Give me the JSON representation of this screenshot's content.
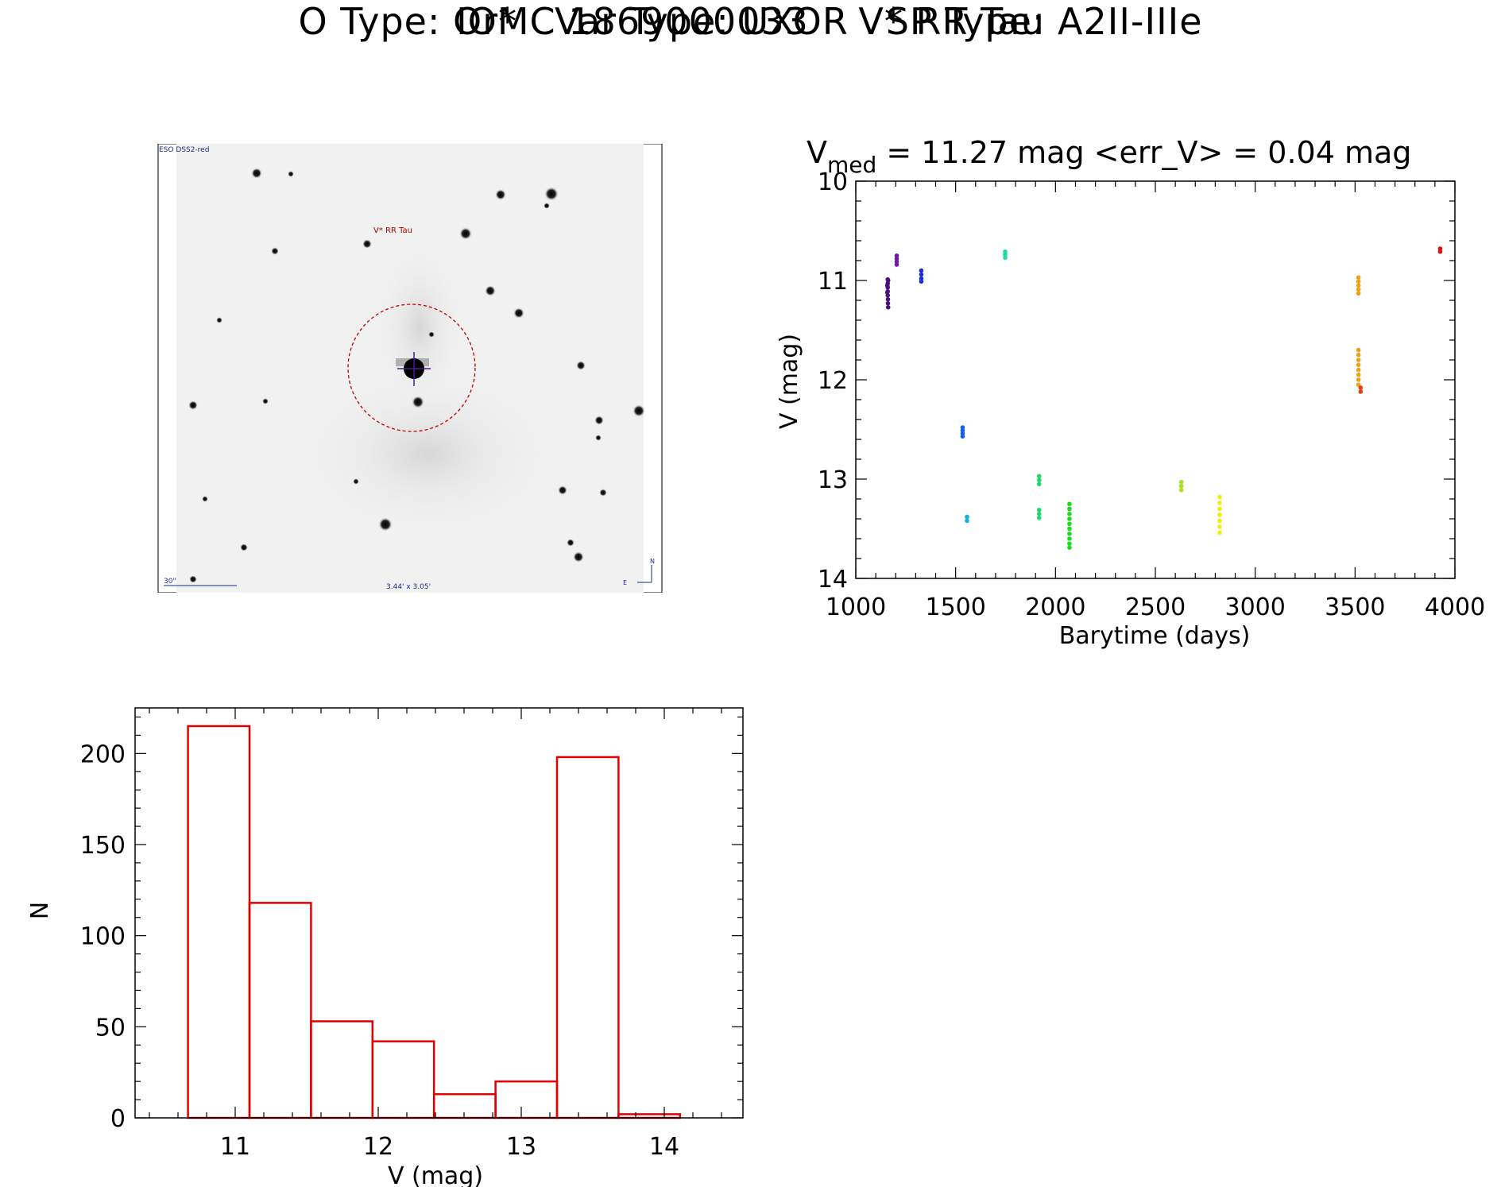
{
  "header": {
    "line1": "IOMC 1869000033    V* RR Tau",
    "line2": "O Type: Or*   Var Type: UXOR   SP Type: A2II-IIIe"
  },
  "sky_image": {
    "survey_label": "ESO DSS2-red",
    "target_label": "V* RR Tau",
    "scale_label": "30\"",
    "size_label": "3.44' x 3.05'",
    "orientation_n": "N",
    "orientation_e": "E",
    "target_circle_color": "#c00000"
  },
  "chart_data": [
    {
      "type": "scatter",
      "title_prefix": "V",
      "title_subscript": "med",
      "title_rest": " = 11.27 mag <err_V> = 0.04 mag",
      "xlabel": "Barytime (days)",
      "ylabel": "V (mag)",
      "xlim": [
        1000,
        4000
      ],
      "ylim": [
        14,
        10
      ],
      "y_inverted": true,
      "xticks": [
        1000,
        1500,
        2000,
        2500,
        3000,
        3500,
        4000
      ],
      "yticks": [
        10,
        11,
        12,
        13,
        14
      ],
      "series": [
        {
          "color": "#4b1080",
          "points": [
            [
              1160,
              10.99
            ],
            [
              1160,
              11.03
            ],
            [
              1160,
              11.07
            ],
            [
              1160,
              11.11
            ],
            [
              1160,
              11.15
            ],
            [
              1161,
              11.19
            ],
            [
              1161,
              11.23
            ],
            [
              1162,
              11.27
            ],
            [
              1158,
              11.05
            ],
            [
              1158,
              11.12
            ],
            [
              1162,
              11.0
            ]
          ]
        },
        {
          "color": "#6a1ca8",
          "points": [
            [
              1205,
              10.75
            ],
            [
              1205,
              10.78
            ],
            [
              1205,
              10.81
            ],
            [
              1205,
              10.84
            ]
          ]
        },
        {
          "color": "#1a2fd8",
          "points": [
            [
              1328,
              10.9
            ],
            [
              1328,
              10.94
            ],
            [
              1328,
              10.98
            ],
            [
              1328,
              11.01
            ]
          ]
        },
        {
          "color": "#1560e0",
          "points": [
            [
              1535,
              12.48
            ],
            [
              1535,
              12.51
            ],
            [
              1535,
              12.54
            ],
            [
              1535,
              12.57
            ]
          ]
        },
        {
          "color": "#12b0e0",
          "points": [
            [
              1557,
              13.38
            ],
            [
              1557,
              13.42
            ]
          ]
        },
        {
          "color": "#1fd8a8",
          "points": [
            [
              1748,
              10.71
            ],
            [
              1748,
              10.74
            ],
            [
              1748,
              10.77
            ]
          ]
        },
        {
          "color": "#22d86a",
          "points": [
            [
              1918,
              12.97
            ],
            [
              1918,
              13.01
            ],
            [
              1918,
              13.05
            ],
            [
              1918,
              13.31
            ],
            [
              1918,
              13.35
            ],
            [
              1918,
              13.39
            ]
          ]
        },
        {
          "color": "#1fd81f",
          "points": [
            [
              2070,
              13.25
            ],
            [
              2070,
              13.3
            ],
            [
              2070,
              13.35
            ],
            [
              2070,
              13.4
            ],
            [
              2070,
              13.45
            ],
            [
              2070,
              13.5
            ],
            [
              2070,
              13.55
            ],
            [
              2070,
              13.6
            ],
            [
              2070,
              13.65
            ],
            [
              2070,
              13.69
            ]
          ]
        },
        {
          "color": "#a8e01a",
          "points": [
            [
              2630,
              13.03
            ],
            [
              2630,
              13.07
            ],
            [
              2630,
              13.11
            ]
          ]
        },
        {
          "color": "#f0f000",
          "points": [
            [
              2822,
              13.18
            ],
            [
              2822,
              13.24
            ],
            [
              2822,
              13.3
            ],
            [
              2822,
              13.36
            ],
            [
              2822,
              13.42
            ],
            [
              2822,
              13.48
            ],
            [
              2822,
              13.54
            ]
          ]
        },
        {
          "color": "#f0a010",
          "points": [
            [
              3517,
              10.97
            ],
            [
              3517,
              11.01
            ],
            [
              3517,
              11.05
            ],
            [
              3517,
              11.09
            ],
            [
              3517,
              11.13
            ],
            [
              3517,
              11.7
            ],
            [
              3517,
              11.75
            ],
            [
              3517,
              11.8
            ],
            [
              3517,
              11.85
            ],
            [
              3517,
              11.9
            ],
            [
              3517,
              11.95
            ],
            [
              3517,
              12.0
            ],
            [
              3517,
              12.05
            ]
          ]
        },
        {
          "color": "#e04018",
          "points": [
            [
              3528,
              12.08
            ],
            [
              3528,
              12.12
            ]
          ]
        },
        {
          "color": "#e01010",
          "points": [
            [
              3926,
              10.68
            ],
            [
              3926,
              10.71
            ]
          ]
        }
      ]
    },
    {
      "type": "bar",
      "xlabel": "V (mag)",
      "ylabel": "N",
      "xlim": [
        10.3,
        14.55
      ],
      "ylim": [
        0,
        225
      ],
      "xticks": [
        11,
        12,
        13,
        14
      ],
      "yticks": [
        0,
        50,
        100,
        150,
        200
      ],
      "bin_edges": [
        10.67,
        11.1,
        11.53,
        11.96,
        12.39,
        12.82,
        13.25,
        13.68,
        14.11
      ],
      "values": [
        215,
        118,
        53,
        42,
        13,
        20,
        198,
        2
      ],
      "bar_color": "#e00000"
    }
  ]
}
